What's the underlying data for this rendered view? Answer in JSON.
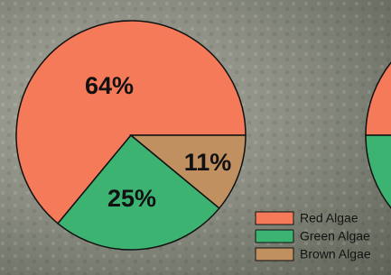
{
  "chart_data": {
    "type": "pie",
    "categories": [
      "Red Algae",
      "Green Algae",
      "Brown Algae"
    ],
    "values": [
      64,
      25,
      11
    ],
    "value_labels": [
      "64%",
      "25%",
      "11%"
    ],
    "colors": [
      "#f47a5a",
      "#3cb371",
      "#c09060"
    ]
  }
}
